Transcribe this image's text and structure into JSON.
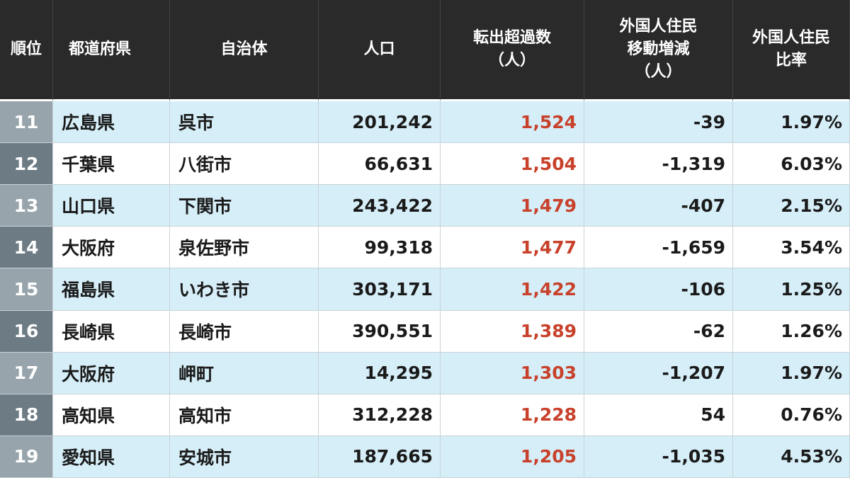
{
  "table": {
    "headers": [
      [
        "順位"
      ],
      [
        "都道府県"
      ],
      [
        "自治体"
      ],
      [
        "人口"
      ],
      [
        "転出超過数",
        "（人）"
      ],
      [
        "外国人住民",
        "移動増減",
        "（人）"
      ],
      [
        "外国人住民",
        "比率"
      ]
    ],
    "rows": [
      [
        "11",
        "広島県",
        "呉市",
        "201,242",
        "1,524",
        "-39",
        "1.97%"
      ],
      [
        "12",
        "千葉県",
        "八街市",
        "66,631",
        "1,504",
        "-1,319",
        "6.03%"
      ],
      [
        "13",
        "山口県",
        "下関市",
        "243,422",
        "1,479",
        "-407",
        "2.15%"
      ],
      [
        "14",
        "大阪府",
        "泉佐野市",
        "99,318",
        "1,477",
        "-1,659",
        "3.54%"
      ],
      [
        "15",
        "福島県",
        "いわき市",
        "303,171",
        "1,422",
        "-106",
        "1.25%"
      ],
      [
        "16",
        "長崎県",
        "長崎市",
        "390,551",
        "1,389",
        "-62",
        "1.26%"
      ],
      [
        "17",
        "大阪府",
        "岬町",
        "14,295",
        "1,303",
        "-1,207",
        "1.97%"
      ],
      [
        "18",
        "高知県",
        "高知市",
        "312,228",
        "1,228",
        "54",
        "0.76%"
      ],
      [
        "19",
        "愛知県",
        "安城市",
        "187,665",
        "1,205",
        "-1,035",
        "4.53%"
      ]
    ]
  }
}
